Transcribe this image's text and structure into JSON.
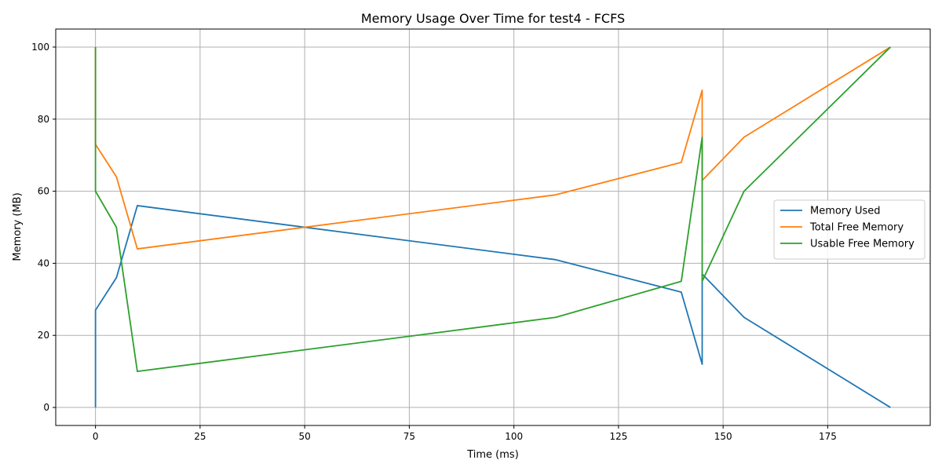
{
  "chart_data": {
    "type": "line",
    "title": "Memory Usage Over Time for test4 - FCFS",
    "xlabel": "Time (ms)",
    "ylabel": "Memory (MB)",
    "xlim": [
      -9.5,
      199.5
    ],
    "ylim": [
      -5,
      105
    ],
    "xticks": [
      0,
      25,
      50,
      75,
      100,
      125,
      150,
      175
    ],
    "xtick_labels": [
      "0",
      "25",
      "50",
      "75",
      "100",
      "125",
      "150",
      "175"
    ],
    "yticks": [
      0,
      20,
      40,
      60,
      80,
      100
    ],
    "ytick_labels": [
      "0",
      "20",
      "40",
      "60",
      "80",
      "100"
    ],
    "grid": true,
    "legend_position": "center-right",
    "series": [
      {
        "name": "Memory Used",
        "color": "#1f77b4",
        "x": [
          0,
          0,
          0,
          5,
          10,
          110,
          140,
          145,
          145,
          155,
          190
        ],
        "y": [
          0,
          0,
          27,
          36,
          56,
          41,
          32,
          12,
          37,
          25,
          0
        ]
      },
      {
        "name": "Total Free Memory",
        "color": "#ff7f0e",
        "x": [
          0,
          0,
          0,
          5,
          10,
          110,
          140,
          145,
          145,
          155,
          190
        ],
        "y": [
          100,
          100,
          73,
          64,
          44,
          59,
          68,
          88,
          63,
          75,
          100
        ]
      },
      {
        "name": "Usable Free Memory",
        "color": "#2ca02c",
        "x": [
          0,
          0,
          0,
          5,
          10,
          110,
          140,
          145,
          145,
          155,
          190
        ],
        "y": [
          100,
          100,
          60,
          50,
          10,
          25,
          35,
          75,
          35,
          60,
          100
        ]
      }
    ]
  }
}
